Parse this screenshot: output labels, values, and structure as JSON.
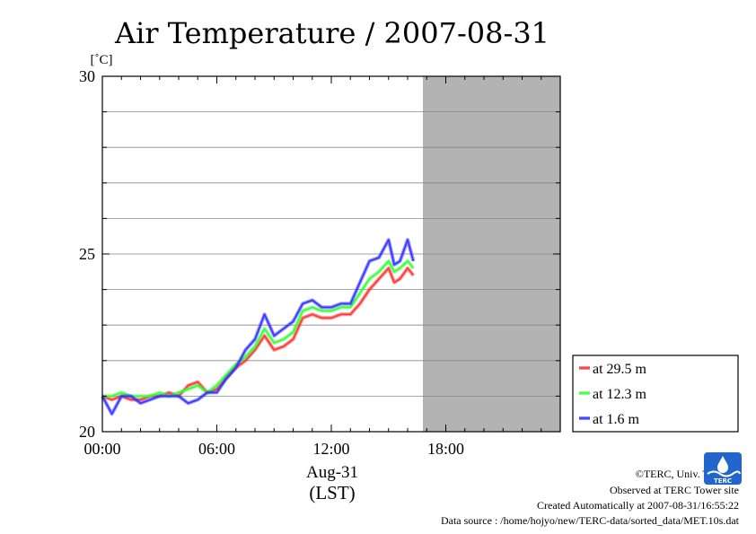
{
  "chart_data": {
    "type": "line",
    "title": "Air Temperature / 2007-08-31",
    "ylabel": "[˚C]",
    "xlabel": "Aug-31",
    "xlabel2": "(LST)",
    "xlim": [
      0,
      24
    ],
    "ylim": [
      20,
      30
    ],
    "x_ticks": [
      {
        "value": 0,
        "label": "00:00"
      },
      {
        "value": 6,
        "label": "06:00"
      },
      {
        "value": 12,
        "label": "12:00"
      },
      {
        "value": 18,
        "label": "18:00"
      }
    ],
    "y_ticks": [
      {
        "value": 20,
        "label": "20"
      },
      {
        "value": 25,
        "label": "25"
      },
      {
        "value": 30,
        "label": "30"
      }
    ],
    "grid": true,
    "no_data_from": 16.8,
    "no_data_color": "#b3b3b3",
    "legend_position": "right",
    "series": [
      {
        "name": "at 29.5 m",
        "color": "#ff3333",
        "x": [
          0,
          0.5,
          1,
          1.5,
          2,
          2.5,
          3,
          3.5,
          4,
          4.5,
          5,
          5.5,
          6,
          6.5,
          7,
          7.5,
          8,
          8.5,
          9,
          9.5,
          10,
          10.5,
          11,
          11.5,
          12,
          12.5,
          13,
          13.5,
          14,
          14.5,
          15,
          15.3,
          15.6,
          16,
          16.3
        ],
        "y": [
          21.0,
          20.9,
          21.0,
          20.9,
          20.9,
          21.0,
          21.0,
          21.1,
          21.0,
          21.3,
          21.4,
          21.1,
          21.2,
          21.5,
          21.8,
          22.0,
          22.3,
          22.7,
          22.3,
          22.4,
          22.6,
          23.2,
          23.3,
          23.2,
          23.2,
          23.3,
          23.3,
          23.6,
          24.0,
          24.3,
          24.6,
          24.2,
          24.3,
          24.6,
          24.4
        ]
      },
      {
        "name": "at 12.3 m",
        "color": "#33ff33",
        "x": [
          0,
          0.5,
          1,
          1.5,
          2,
          2.5,
          3,
          3.5,
          4,
          4.5,
          5,
          5.5,
          6,
          6.5,
          7,
          7.5,
          8,
          8.5,
          9,
          9.5,
          10,
          10.5,
          11,
          11.5,
          12,
          12.5,
          13,
          13.5,
          14,
          14.5,
          15,
          15.3,
          15.6,
          16,
          16.3
        ],
        "y": [
          21.0,
          21.0,
          21.1,
          21.0,
          21.0,
          21.0,
          21.1,
          21.0,
          21.1,
          21.2,
          21.3,
          21.1,
          21.3,
          21.6,
          21.9,
          22.1,
          22.4,
          22.9,
          22.5,
          22.6,
          22.8,
          23.4,
          23.5,
          23.4,
          23.4,
          23.5,
          23.5,
          23.9,
          24.3,
          24.5,
          24.8,
          24.5,
          24.6,
          24.8,
          24.6
        ]
      },
      {
        "name": "at 1.6 m",
        "color": "#3333ff",
        "x": [
          0,
          0.5,
          1,
          1.5,
          2,
          2.5,
          3,
          3.5,
          4,
          4.5,
          5,
          5.5,
          6,
          6.5,
          7,
          7.5,
          8,
          8.5,
          9,
          9.5,
          10,
          10.5,
          11,
          11.5,
          12,
          12.5,
          13,
          13.5,
          14,
          14.5,
          15,
          15.3,
          15.6,
          16,
          16.3
        ],
        "y": [
          21.0,
          20.5,
          21.0,
          21.0,
          20.8,
          20.9,
          21.0,
          21.0,
          21.0,
          20.8,
          20.9,
          21.1,
          21.1,
          21.5,
          21.8,
          22.3,
          22.6,
          23.3,
          22.7,
          22.9,
          23.1,
          23.6,
          23.7,
          23.5,
          23.5,
          23.6,
          23.6,
          24.2,
          24.8,
          24.9,
          25.4,
          24.7,
          24.8,
          25.4,
          24.8
        ]
      }
    ]
  },
  "credits": {
    "copyright": "©TERC, Univ. Tsukuba",
    "observed": "Observed at TERC Tower site",
    "created": "Created Automatically at 2007-08-31/16:55:22",
    "source": "Data source : /home/hojyo/new/TERC-data/sorted_data/MET.10s.dat"
  },
  "logo": {
    "text": "TERC"
  }
}
